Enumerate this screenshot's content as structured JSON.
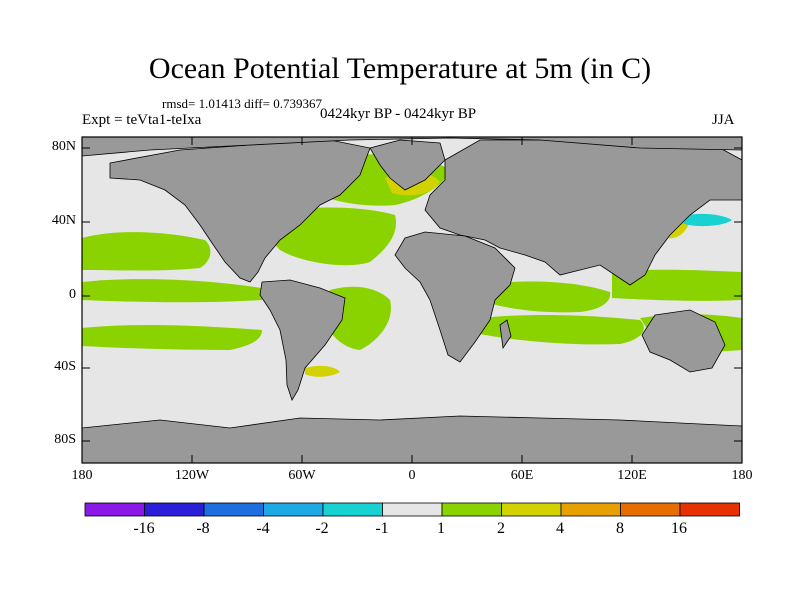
{
  "title": "Ocean Potential Temperature at 5m (in C)",
  "stats": "rmsd= 1.01413 diff= 0.739367",
  "experiment": "Expt = teVta1-teIxa",
  "period": "0424kyr BP - 0424kyr BP",
  "season": "JJA",
  "map": {
    "y_ticks": [
      "80N",
      "40N",
      "0",
      "40S",
      "80S"
    ],
    "x_ticks": [
      "180",
      "120W",
      "60W",
      "0",
      "60E",
      "120E",
      "180"
    ],
    "land_color": "#999999",
    "background_color": "#e6e6e6"
  },
  "colorbar": {
    "colors": [
      "#8a18e6",
      "#2a1ed8",
      "#1e6ee0",
      "#1ea8e6",
      "#18d2d2",
      "#e6e6e6",
      "#8ad200",
      "#d2d200",
      "#e6a000",
      "#e66e00",
      "#e63200"
    ],
    "labels": [
      "-16",
      "-8",
      "-4",
      "-2",
      "-1",
      "1",
      "2",
      "4",
      "8",
      "16"
    ]
  }
}
